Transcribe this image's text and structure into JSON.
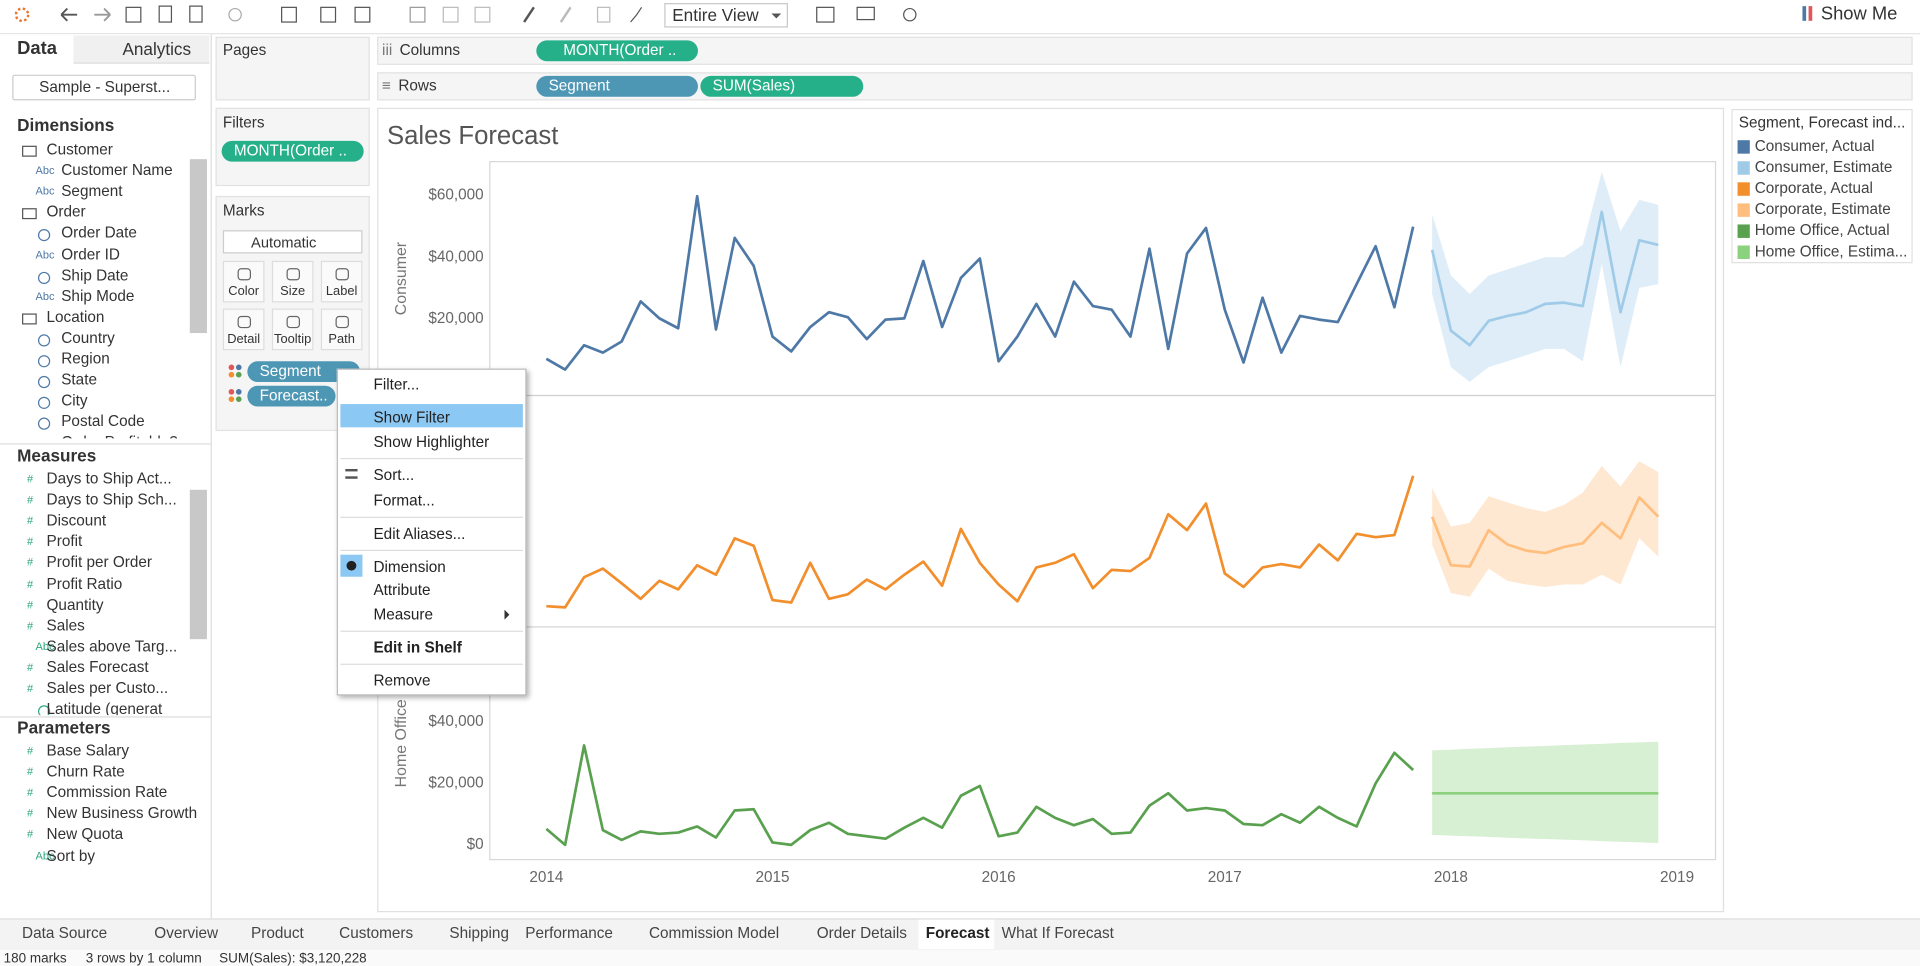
{
  "toolbar": {
    "view": "Entire View",
    "show_me": "Show Me"
  },
  "data_pane": {
    "tabs": [
      "Data",
      "Analytics"
    ],
    "source": "Sample - Superst...",
    "dimensions_title": "Dimensions",
    "dimensions": [
      {
        "label": "Customer",
        "folder": true
      },
      {
        "icon": "Abc",
        "label": "Customer Name"
      },
      {
        "icon": "Abc",
        "label": "Segment"
      },
      {
        "label": "Order",
        "folder": true
      },
      {
        "label": "Order Date"
      },
      {
        "icon": "Abc",
        "label": "Order ID"
      },
      {
        "label": "Ship Date"
      },
      {
        "icon": "Abc",
        "label": "Ship Mode"
      },
      {
        "label": "Location",
        "folder": true
      },
      {
        "label": "Country"
      },
      {
        "label": "Region"
      },
      {
        "label": "State"
      },
      {
        "label": "City"
      },
      {
        "label": "Postal Code"
      },
      {
        "label": "Order Profitable?"
      }
    ],
    "measures_title": "Measures",
    "measures": [
      {
        "icon": "#",
        "label": "Days to Ship Act..."
      },
      {
        "icon": "#",
        "label": "Days to Ship Sch..."
      },
      {
        "icon": "#",
        "label": "Discount"
      },
      {
        "icon": "#",
        "label": "Profit"
      },
      {
        "icon": "#",
        "label": "Profit per Order"
      },
      {
        "icon": "#",
        "label": "Profit Ratio"
      },
      {
        "icon": "#",
        "label": "Quantity"
      },
      {
        "icon": "#",
        "label": "Sales"
      },
      {
        "icon": "Abc",
        "label": "Sales above Targ..."
      },
      {
        "icon": "#",
        "label": "Sales Forecast"
      },
      {
        "icon": "#",
        "label": "Sales per Custo..."
      },
      {
        "label": "Latitude (generat"
      }
    ],
    "parameters_title": "Parameters",
    "parameters": [
      {
        "icon": "#",
        "label": "Base Salary"
      },
      {
        "icon": "#",
        "label": "Churn Rate"
      },
      {
        "icon": "#",
        "label": "Commission Rate"
      },
      {
        "icon": "#",
        "label": "New Business Growth"
      },
      {
        "icon": "#",
        "label": "New Quota"
      },
      {
        "icon": "Abc",
        "label": "Sort by"
      }
    ]
  },
  "shelves": {
    "pages": "Pages",
    "filters": "Filters",
    "filter_pill": "MONTH(Order ..",
    "columns": "Columns",
    "columns_pill": "MONTH(Order ..",
    "rows": "Rows",
    "rows_pills": [
      "Segment",
      "SUM(Sales)"
    ]
  },
  "marks": {
    "title": "Marks",
    "mark_type": "Automatic",
    "buttons": [
      "Color",
      "Size",
      "Label",
      "Detail",
      "Tooltip",
      "Path"
    ],
    "pills": [
      "Segment",
      "Forecast.."
    ]
  },
  "context_menu": {
    "items": [
      "Filter...",
      "Show Filter",
      "Show Highlighter",
      "Sort...",
      "Format...",
      "Edit Aliases...",
      "Dimension",
      "Attribute",
      "Measure",
      "Edit in Shelf",
      "Remove"
    ]
  },
  "tabs": [
    "Data Source",
    "Overview",
    "Product",
    "Customers",
    "Shipping",
    "Performance",
    "Commission Model",
    "Order Details",
    "Forecast",
    "What If Forecast"
  ],
  "status": [
    "180 marks",
    "3 rows by 1 column",
    "SUM(Sales): $3,120,228"
  ],
  "chart_data": {
    "type": "line",
    "title": "Sales Forecast",
    "legend_title": "Segment, Forecast ind...",
    "xlim": [
      2013.75,
      2019.17
    ],
    "xticks": [
      2014,
      2015,
      2016,
      2017,
      2018,
      2019
    ],
    "panels": [
      {
        "label": "Consumer",
        "ylim": [
          -4800,
          71000
        ],
        "yticks": [
          {
            "value": 20000,
            "label": "$20,000"
          },
          {
            "value": 40000,
            "label": "$40,000"
          },
          {
            "value": 60000,
            "label": "$60,000"
          }
        ],
        "series": [
          {
            "name": "Consumer, Actual",
            "color": "#4e79a7",
            "x": [
              2014,
              2014.083,
              2014.167,
              2014.25,
              2014.333,
              2014.417,
              2014.5,
              2014.583,
              2014.667,
              2014.75,
              2014.833,
              2014.917,
              2015,
              2015.083,
              2015.167,
              2015.25,
              2015.333,
              2015.417,
              2015.5,
              2015.583,
              2015.667,
              2015.75,
              2015.833,
              2015.917,
              2016,
              2016.083,
              2016.167,
              2016.25,
              2016.333,
              2016.417,
              2016.5,
              2016.583,
              2016.667,
              2016.75,
              2016.833,
              2016.917,
              2017,
              2017.083,
              2017.167,
              2017.25,
              2017.333,
              2017.417,
              2017.5,
              2017.583,
              2017.667,
              2017.75,
              2017.833
            ],
            "values": [
              7100,
              3600,
              11500,
              9100,
              12700,
              25700,
              20200,
              17000,
              59800,
              16600,
              46300,
              37200,
              14300,
              9500,
              17400,
              22200,
              20600,
              13500,
              19800,
              20200,
              38800,
              17400,
              33300,
              39600,
              6300,
              14300,
              24900,
              14300,
              32100,
              24200,
              23000,
              14300,
              42800,
              10300,
              41200,
              49500,
              23000,
              5900,
              26900,
              9100,
              21000,
              19800,
              19000,
              31300,
              43600,
              23800,
              49900
            ]
          },
          {
            "name": "Consumer, Estimate",
            "color": "#a0cbe8",
            "x": [
              2017.917,
              2018,
              2018.083,
              2018.167,
              2018.25,
              2018.333,
              2018.417,
              2018.5,
              2018.583,
              2018.667,
              2018.75,
              2018.833,
              2018.917
            ],
            "values": [
              42400,
              16200,
              11500,
              19400,
              21000,
              22200,
              24900,
              25300,
              24200,
              54700,
              22200,
              45500,
              44000
            ],
            "band_low": [
              28100,
              4400,
              -400,
              4400,
              6300,
              8300,
              10300,
              10300,
              6300,
              38000,
              4400,
              30100,
              31300
            ],
            "band_high": [
              53900,
              34100,
              28100,
              34100,
              36100,
              38000,
              40000,
              40000,
              44000,
              67700,
              48400,
              58600,
              57000
            ]
          }
        ]
      },
      {
        "ylim": [
          -4800,
          71000
        ],
        "series": [
          {
            "name": "Corporate, Actual",
            "color": "#f28e2b",
            "x": [
              2014,
              2014.083,
              2014.167,
              2014.25,
              2014.333,
              2014.417,
              2014.5,
              2014.583,
              2014.667,
              2014.75,
              2014.833,
              2014.917,
              2015,
              2015.083,
              2015.167,
              2015.25,
              2015.333,
              2015.417,
              2015.5,
              2015.583,
              2015.667,
              2015.75,
              2015.833,
              2015.917,
              2016,
              2016.083,
              2016.167,
              2016.25,
              2016.333,
              2016.417,
              2016.5,
              2016.583,
              2016.667,
              2016.75,
              2016.833,
              2016.917,
              2017,
              2017.083,
              2017.167,
              2017.25,
              2017.333,
              2017.417,
              2017.5,
              2017.583,
              2017.667,
              2017.75,
              2017.833
            ],
            "values": [
              2000,
              1600,
              11500,
              14300,
              9500,
              4400,
              10300,
              7500,
              15400,
              12300,
              24200,
              21800,
              4000,
              3200,
              16200,
              4400,
              5900,
              10700,
              7500,
              12300,
              16600,
              8700,
              27300,
              16200,
              9100,
              3600,
              14700,
              16200,
              19000,
              7900,
              13900,
              13500,
              17800,
              32100,
              26900,
              35600,
              12700,
              8300,
              14700,
              15800,
              14700,
              22200,
              17000,
              25700,
              24600,
              25300,
              44700
            ]
          },
          {
            "name": "Corporate, Estimate",
            "color": "#ffbe7d",
            "x": [
              2017.917,
              2018,
              2018.083,
              2018.167,
              2018.25,
              2018.333,
              2018.417,
              2018.5,
              2018.583,
              2018.667,
              2018.75,
              2018.833,
              2018.917
            ],
            "values": [
              31300,
              15400,
              15000,
              26900,
              22200,
              20200,
              19400,
              21400,
              22600,
              29300,
              24200,
              37600,
              31300
            ],
            "band_low": [
              22200,
              6300,
              5100,
              14300,
              10300,
              9100,
              8300,
              9100,
              9100,
              12300,
              9100,
              24200,
              18200
            ],
            "band_high": [
              40800,
              28100,
              29300,
              38000,
              36000,
              34100,
              32900,
              35200,
              39200,
              47900,
              41200,
              49500,
              45900
            ]
          }
        ]
      },
      {
        "label": "Home Office",
        "ylim": [
          -4800,
          71000
        ],
        "yticks": [
          {
            "value": 0,
            "label": "$0"
          },
          {
            "value": 20000,
            "label": "$20,000"
          },
          {
            "value": 40000,
            "label": "$40,000"
          }
        ],
        "series": [
          {
            "name": "Home Office, Actual",
            "color": "#59a14f",
            "x": [
              2014,
              2014.083,
              2014.167,
              2014.25,
              2014.333,
              2014.417,
              2014.5,
              2014.583,
              2014.667,
              2014.75,
              2014.833,
              2014.917,
              2015,
              2015.083,
              2015.167,
              2015.25,
              2015.333,
              2015.417,
              2015.5,
              2015.583,
              2015.667,
              2015.75,
              2015.833,
              2015.917,
              2016,
              2016.083,
              2016.167,
              2016.25,
              2016.333,
              2016.417,
              2016.5,
              2016.583,
              2016.667,
              2016.75,
              2016.833,
              2016.917,
              2017,
              2017.083,
              2017.167,
              2017.25,
              2017.333,
              2017.417,
              2017.5,
              2017.583,
              2017.667,
              2017.75,
              2017.833
            ],
            "values": [
              5200,
              0,
              32400,
              4800,
              1600,
              4400,
              3600,
              4000,
              6000,
              2400,
              11200,
              11600,
              800,
              0,
              4800,
              7200,
              3600,
              2800,
              2000,
              5600,
              8800,
              5600,
              16000,
              19200,
              2800,
              4000,
              12400,
              8800,
              6400,
              8400,
              3600,
              4000,
              12800,
              16800,
              11200,
              12000,
              11200,
              6800,
              6400,
              10000,
              7200,
              12400,
              8800,
              6000,
              20000,
              30000,
              24400
            ]
          },
          {
            "name": "Home Office, Estima...",
            "color": "#8cd17d",
            "x": [
              2017.917,
              2018,
              2018.083,
              2018.167,
              2018.25,
              2018.333,
              2018.417,
              2018.5,
              2018.583,
              2018.667,
              2018.75,
              2018.833,
              2018.917
            ],
            "values": [
              16800,
              16800,
              16800,
              16800,
              16800,
              16800,
              16800,
              16800,
              16800,
              16800,
              16800,
              16800,
              16800
            ],
            "band_low": [
              3200,
              3000,
              2800,
              2600,
              2300,
              2100,
              1900,
              1700,
              1500,
              1200,
              1000,
              800,
              600
            ],
            "band_high": [
              30800,
              31000,
              31300,
              31500,
              31800,
              32000,
              32200,
              32500,
              32700,
              32900,
              33200,
              33400,
              33600
            ]
          }
        ]
      }
    ]
  }
}
